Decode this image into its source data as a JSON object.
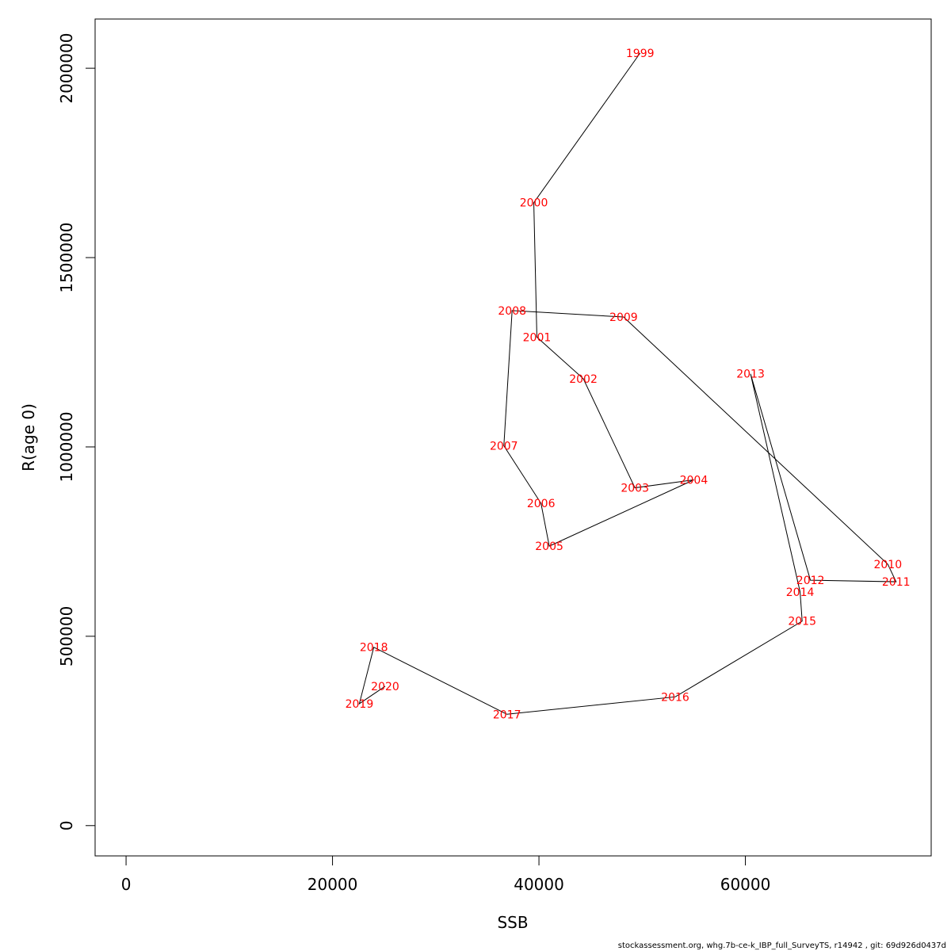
{
  "chart_data": {
    "type": "line",
    "xlabel": "SSB",
    "ylabel": "R(age 0)",
    "xlim": [
      -3000,
      78000
    ],
    "ylim": [
      -80000,
      2130000
    ],
    "x_ticks": [
      0,
      20000,
      40000,
      60000
    ],
    "y_ticks": [
      0,
      500000,
      1000000,
      1500000,
      2000000
    ],
    "grid": false,
    "label_color": "#ff0000",
    "line_color": "#000000",
    "points": [
      {
        "year": "1999",
        "ssb": 49800,
        "r": 2040000
      },
      {
        "year": "2000",
        "ssb": 39500,
        "r": 1645000
      },
      {
        "year": "2001",
        "ssb": 39800,
        "r": 1290000
      },
      {
        "year": "2002",
        "ssb": 44300,
        "r": 1180000
      },
      {
        "year": "2003",
        "ssb": 49300,
        "r": 892000
      },
      {
        "year": "2004",
        "ssb": 55000,
        "r": 913000
      },
      {
        "year": "2005",
        "ssb": 41000,
        "r": 738000
      },
      {
        "year": "2006",
        "ssb": 40200,
        "r": 851000
      },
      {
        "year": "2007",
        "ssb": 36600,
        "r": 1003000
      },
      {
        "year": "2008",
        "ssb": 37400,
        "r": 1360000
      },
      {
        "year": "2009",
        "ssb": 48200,
        "r": 1343000
      },
      {
        "year": "2010",
        "ssb": 73800,
        "r": 690000
      },
      {
        "year": "2011",
        "ssb": 74600,
        "r": 644000
      },
      {
        "year": "2012",
        "ssb": 66300,
        "r": 648000
      },
      {
        "year": "2013",
        "ssb": 60500,
        "r": 1193000
      },
      {
        "year": "2014",
        "ssb": 65300,
        "r": 617000
      },
      {
        "year": "2015",
        "ssb": 65500,
        "r": 540000
      },
      {
        "year": "2016",
        "ssb": 53200,
        "r": 340000
      },
      {
        "year": "2017",
        "ssb": 36900,
        "r": 294000
      },
      {
        "year": "2018",
        "ssb": 24000,
        "r": 471000
      },
      {
        "year": "2019",
        "ssb": 22600,
        "r": 322000
      },
      {
        "year": "2020",
        "ssb": 25100,
        "r": 368000
      }
    ]
  },
  "footer": "stockassessment.org, whg.7b-ce-k_IBP_full_SurveyTS, r14942 , git: 69d926d0437d"
}
